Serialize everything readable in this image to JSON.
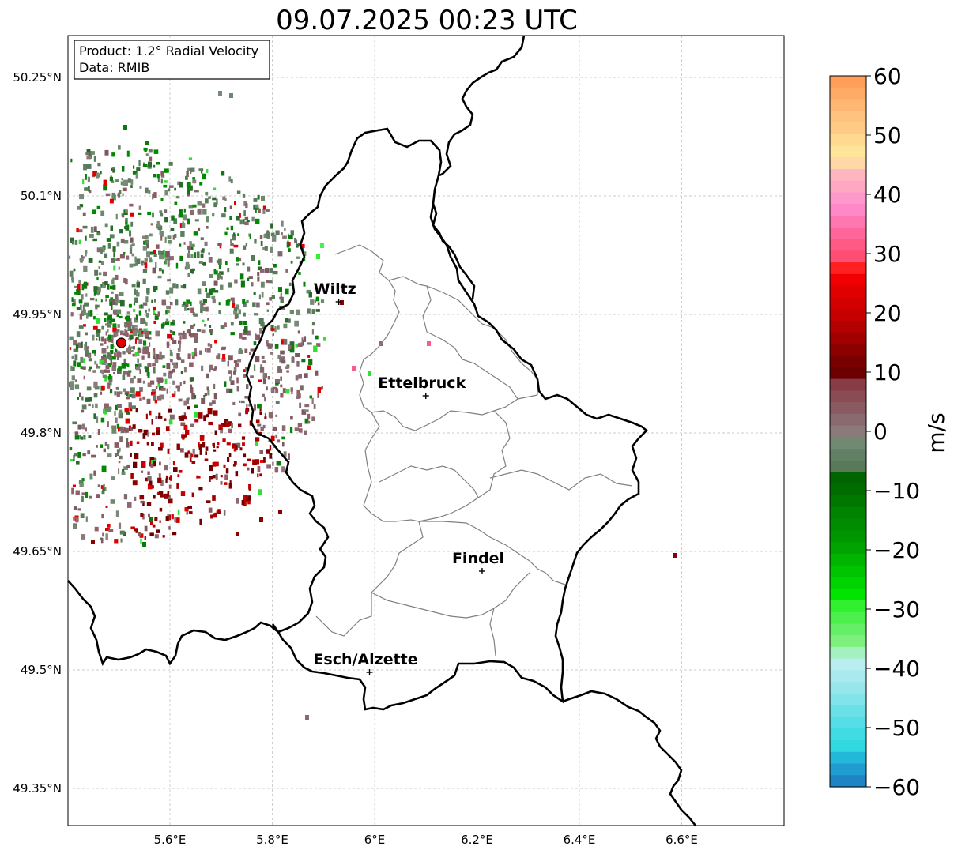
{
  "title": "09.07.2025 00:23 UTC",
  "info_box": {
    "product": "Product: 1.2° Radial Velocity",
    "data_source": "Data: RMIB"
  },
  "map": {
    "lon_range": [
      5.4,
      6.8
    ],
    "lat_range": [
      49.32,
      50.3
    ],
    "lon_ticks": [
      "5.6°E",
      "5.8°E",
      "6°E",
      "6.2°E",
      "6.4°E",
      "6.6°E"
    ],
    "lat_ticks": [
      "50.25°N",
      "50.1°N",
      "49.95°N",
      "49.8°N",
      "49.65°N",
      "49.5°N",
      "49.35°N"
    ],
    "grid": "on, dashed",
    "radar_site": {
      "lon": 5.505,
      "lat": 49.914
    },
    "cities": [
      {
        "name": "Wiltz",
        "lon": 5.93,
        "lat": 49.966
      },
      {
        "name": "Ettelbruck",
        "lon": 6.1,
        "lat": 49.847
      },
      {
        "name": "Findel",
        "lon": 6.21,
        "lat": 49.625
      },
      {
        "name": "Esch/Alzette",
        "lon": 5.99,
        "lat": 49.497
      }
    ],
    "colors": {
      "country_border": "#000000",
      "canton_border": "#808080",
      "radar_site": "#e00000"
    }
  },
  "colorbar": {
    "label": "m/s",
    "ticks": [
      "60",
      "50",
      "40",
      "30",
      "20",
      "10",
      "0",
      "−10",
      "−20",
      "−30",
      "−40",
      "−50",
      "−60"
    ],
    "range": [
      -60,
      60
    ],
    "colors_top_to_bottom": [
      "#ff9e59",
      "#ffaa66",
      "#ffb873",
      "#ffc27f",
      "#ffca86",
      "#ffd98f",
      "#ffe59a",
      "#ffd8a8",
      "#ffb6c0",
      "#ffa8c4",
      "#ff98cc",
      "#ff88c8",
      "#ff77b0",
      "#ff669a",
      "#ff5a86",
      "#ff4d74",
      "#ff2020",
      "#f00000",
      "#e00000",
      "#d40000",
      "#c60000",
      "#b40000",
      "#a20000",
      "#8c0000",
      "#7a0000",
      "#6c0000",
      "#873c46",
      "#8a4b55",
      "#8a5a63",
      "#8a6a70",
      "#8a7a7a",
      "#6f8a70",
      "#628066",
      "#587a5a",
      "#006400",
      "#006c00",
      "#007800",
      "#008400",
      "#008c00",
      "#009600",
      "#00a400",
      "#00b400",
      "#00c400",
      "#00d400",
      "#00e400",
      "#30f030",
      "#4cf04c",
      "#66ee66",
      "#7ef07e",
      "#a4f0c0",
      "#b8eef0",
      "#a8eaee",
      "#96e6ec",
      "#80e4ea",
      "#6ae0e8",
      "#56dee6",
      "#40dce4",
      "#30d8e0",
      "#24b8d8",
      "#209cd0",
      "#1e84c4"
    ]
  }
}
